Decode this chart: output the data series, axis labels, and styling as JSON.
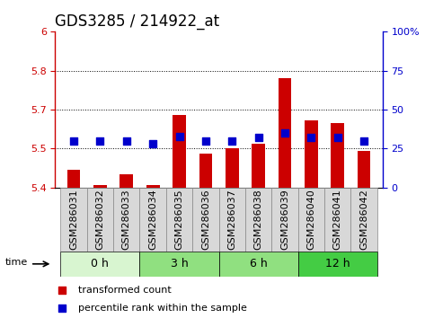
{
  "title": "GDS3285 / 214922_at",
  "samples": [
    "GSM286031",
    "GSM286032",
    "GSM286033",
    "GSM286034",
    "GSM286035",
    "GSM286036",
    "GSM286037",
    "GSM286038",
    "GSM286039",
    "GSM286040",
    "GSM286041",
    "GSM286042"
  ],
  "transformed_count": [
    5.47,
    5.41,
    5.45,
    5.41,
    5.68,
    5.53,
    5.55,
    5.57,
    5.82,
    5.66,
    5.65,
    5.54
  ],
  "percentile_rank": [
    30,
    30,
    30,
    28,
    33,
    30,
    30,
    32,
    35,
    32,
    32,
    30
  ],
  "ylim_left": [
    5.4,
    6.0
  ],
  "ylim_right": [
    0,
    100
  ],
  "yticks_left": [
    5.4,
    5.55,
    5.7,
    5.85,
    6.0
  ],
  "yticks_right": [
    0,
    25,
    50,
    75,
    100
  ],
  "hlines": [
    5.55,
    5.7,
    5.85
  ],
  "groups": [
    {
      "label": "0 h",
      "start": 0,
      "end": 3,
      "color": "#d8f5d0"
    },
    {
      "label": "3 h",
      "start": 3,
      "end": 6,
      "color": "#90e080"
    },
    {
      "label": "6 h",
      "start": 6,
      "end": 9,
      "color": "#90e080"
    },
    {
      "label": "12 h",
      "start": 9,
      "end": 12,
      "color": "#44cc44"
    }
  ],
  "bar_color": "#cc0000",
  "dot_color": "#0000cc",
  "bar_bottom": 5.4,
  "bar_width": 0.5,
  "dot_size": 35,
  "legend_items": [
    {
      "label": "transformed count",
      "color": "#cc0000"
    },
    {
      "label": "percentile rank within the sample",
      "color": "#0000cc"
    }
  ],
  "left_axis_color": "#cc0000",
  "right_axis_color": "#0000cc",
  "title_fontsize": 12,
  "tick_fontsize": 8,
  "group_label_fontsize": 9,
  "sample_box_color": "#d8d8d8",
  "sample_box_edge": "#888888"
}
